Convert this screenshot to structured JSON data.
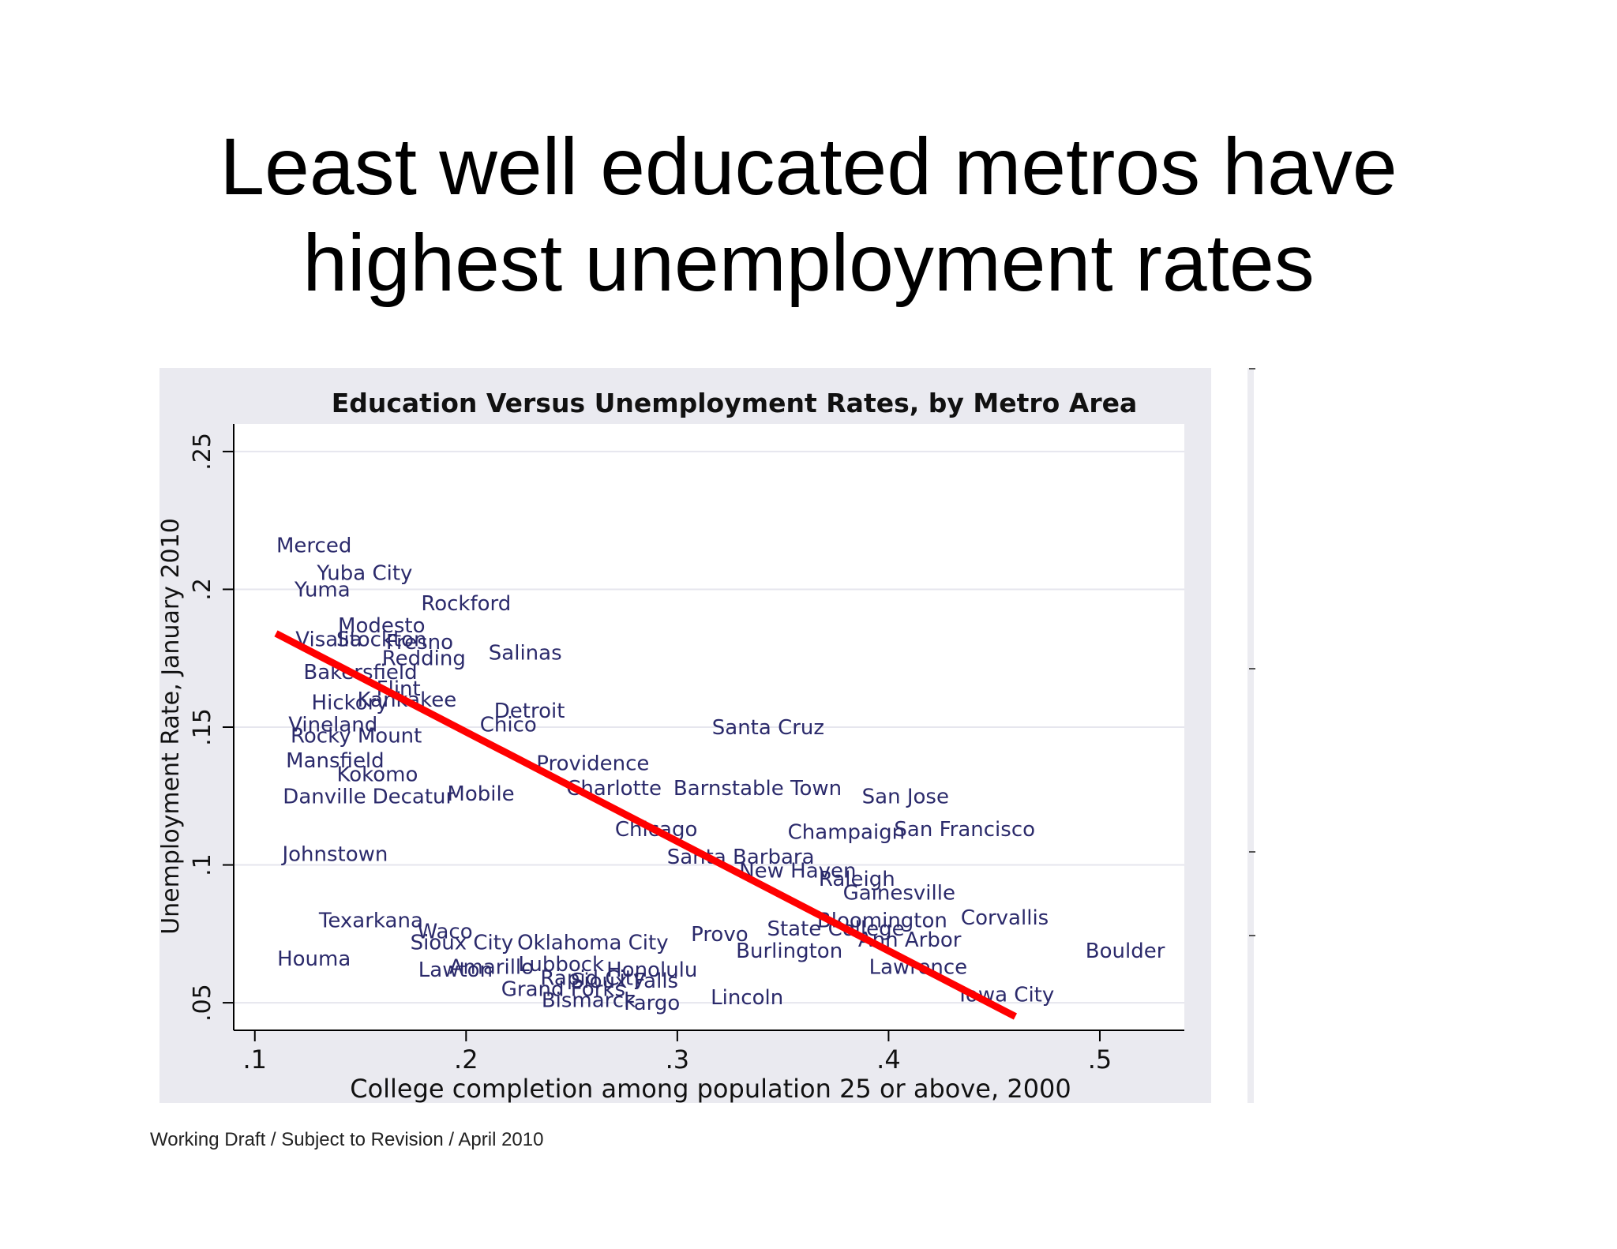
{
  "slide": {
    "title_lines": [
      "Least well educated metros have",
      "highest unemployment rates"
    ],
    "footer": "Working Draft / Subject to Revision / April 2010"
  },
  "colors": {
    "background": "#ffffff",
    "panel": "#eaeaf0",
    "plot_area": "#ffffff",
    "point_label": "#2b2a6b",
    "fit_line": "#ff0000",
    "axis": "#000000"
  },
  "chart_data": {
    "type": "scatter",
    "title": "Education Versus Unemployment Rates, by Metro Area",
    "xlabel": "College completion among population 25 or above, 2000",
    "ylabel": "Unemployment Rate, January 2010",
    "xlim": [
      0.09,
      0.54
    ],
    "ylim": [
      0.04,
      0.26
    ],
    "xticks": [
      0.1,
      0.2,
      0.3,
      0.4,
      0.5
    ],
    "xtick_labels": [
      ".1",
      ".2",
      ".3",
      ".4",
      ".5"
    ],
    "yticks": [
      0.05,
      0.1,
      0.15,
      0.2,
      0.25
    ],
    "ytick_labels": [
      ".05",
      ".1",
      ".15",
      ".2",
      ".25"
    ],
    "grid": "horizontal",
    "marker": "metro-name-label",
    "labeled_points": [
      {
        "label": "Merced",
        "x": 0.128,
        "y": 0.216
      },
      {
        "label": "Yuba City",
        "x": 0.152,
        "y": 0.206
      },
      {
        "label": "Yuma",
        "x": 0.132,
        "y": 0.2
      },
      {
        "label": "Rockford",
        "x": 0.2,
        "y": 0.195
      },
      {
        "label": "Modesto",
        "x": 0.16,
        "y": 0.187
      },
      {
        "label": "Visalia",
        "x": 0.135,
        "y": 0.182
      },
      {
        "label": "Stockton",
        "x": 0.16,
        "y": 0.182
      },
      {
        "label": "Fresno",
        "x": 0.178,
        "y": 0.181
      },
      {
        "label": "Salinas",
        "x": 0.228,
        "y": 0.177
      },
      {
        "label": "Redding",
        "x": 0.18,
        "y": 0.175
      },
      {
        "label": "Bakersfield",
        "x": 0.15,
        "y": 0.17
      },
      {
        "label": "Flint",
        "x": 0.168,
        "y": 0.164
      },
      {
        "label": "Kankakee",
        "x": 0.172,
        "y": 0.16
      },
      {
        "label": "Hickory",
        "x": 0.145,
        "y": 0.159
      },
      {
        "label": "Detroit",
        "x": 0.23,
        "y": 0.156
      },
      {
        "label": "Chico",
        "x": 0.22,
        "y": 0.151
      },
      {
        "label": "Vineland",
        "x": 0.137,
        "y": 0.151
      },
      {
        "label": "Rocky Mount",
        "x": 0.148,
        "y": 0.147
      },
      {
        "label": "Santa Cruz",
        "x": 0.343,
        "y": 0.15
      },
      {
        "label": "Mansfield",
        "x": 0.138,
        "y": 0.138
      },
      {
        "label": "Providence",
        "x": 0.26,
        "y": 0.137
      },
      {
        "label": "Kokomo",
        "x": 0.158,
        "y": 0.133
      },
      {
        "label": "Barnstable Town",
        "x": 0.338,
        "y": 0.128
      },
      {
        "label": "San Jose",
        "x": 0.408,
        "y": 0.125
      },
      {
        "label": "Danville",
        "x": 0.133,
        "y": 0.125
      },
      {
        "label": "Decatur",
        "x": 0.175,
        "y": 0.125
      },
      {
        "label": "Mobile",
        "x": 0.207,
        "y": 0.126
      },
      {
        "label": "Charlotte",
        "x": 0.27,
        "y": 0.128
      },
      {
        "label": "Chicago",
        "x": 0.29,
        "y": 0.113
      },
      {
        "label": "Champaign",
        "x": 0.38,
        "y": 0.112
      },
      {
        "label": "San Francisco",
        "x": 0.436,
        "y": 0.113
      },
      {
        "label": "Johnstown",
        "x": 0.138,
        "y": 0.104
      },
      {
        "label": "Santa Barbara",
        "x": 0.33,
        "y": 0.103
      },
      {
        "label": "New Haven",
        "x": 0.357,
        "y": 0.098
      },
      {
        "label": "Raleigh",
        "x": 0.385,
        "y": 0.095
      },
      {
        "label": "Gainesville",
        "x": 0.405,
        "y": 0.09
      },
      {
        "label": "Texarkana",
        "x": 0.155,
        "y": 0.08
      },
      {
        "label": "Bloomington",
        "x": 0.397,
        "y": 0.08
      },
      {
        "label": "Corvallis",
        "x": 0.455,
        "y": 0.081
      },
      {
        "label": "State College",
        "x": 0.375,
        "y": 0.077
      },
      {
        "label": "Waco",
        "x": 0.19,
        "y": 0.076
      },
      {
        "label": "Sioux City",
        "x": 0.198,
        "y": 0.072
      },
      {
        "label": "Oklahoma City",
        "x": 0.26,
        "y": 0.072
      },
      {
        "label": "Provo",
        "x": 0.32,
        "y": 0.075
      },
      {
        "label": "Ann Arbor",
        "x": 0.41,
        "y": 0.073
      },
      {
        "label": "Boulder",
        "x": 0.512,
        "y": 0.069
      },
      {
        "label": "Houma",
        "x": 0.128,
        "y": 0.066
      },
      {
        "label": "Burlington",
        "x": 0.353,
        "y": 0.069
      },
      {
        "label": "Lawton",
        "x": 0.195,
        "y": 0.062
      },
      {
        "label": "Amarillo",
        "x": 0.212,
        "y": 0.063
      },
      {
        "label": "Lubbock",
        "x": 0.245,
        "y": 0.064
      },
      {
        "label": "Honolulu",
        "x": 0.288,
        "y": 0.062
      },
      {
        "label": "Lawrence",
        "x": 0.414,
        "y": 0.063
      },
      {
        "label": "Rapid City",
        "x": 0.26,
        "y": 0.059
      },
      {
        "label": "Sioux Falls",
        "x": 0.275,
        "y": 0.058
      },
      {
        "label": "Grand Forks",
        "x": 0.246,
        "y": 0.055
      },
      {
        "label": "Bismarck",
        "x": 0.258,
        "y": 0.051
      },
      {
        "label": "Fargo",
        "x": 0.288,
        "y": 0.05
      },
      {
        "label": "Lincoln",
        "x": 0.333,
        "y": 0.052
      },
      {
        "label": "Iowa City",
        "x": 0.456,
        "y": 0.053
      }
    ],
    "fit_line": {
      "x": [
        0.11,
        0.46
      ],
      "y": [
        0.184,
        0.045
      ]
    }
  }
}
